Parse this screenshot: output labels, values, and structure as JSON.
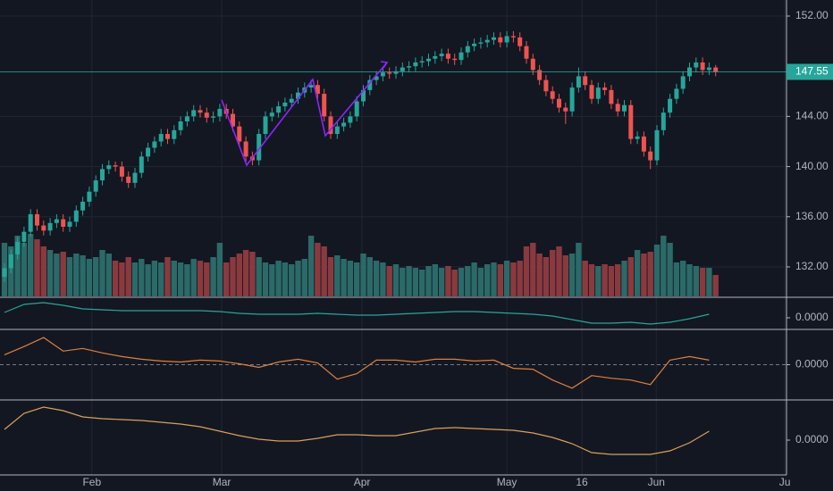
{
  "chart_data": {
    "type": "candlestick",
    "colors": {
      "up": "#26a69a",
      "down": "#ef5350",
      "volume_up": "#2b6a68",
      "volume_down": "#8a3a3f",
      "last_price": "#26a69a"
    },
    "open": [
      131.2,
      131.9,
      133.0,
      134.0,
      134.8,
      136.2,
      135.3,
      134.9,
      135.5,
      135.8,
      135.2,
      135.6,
      136.5,
      137.2,
      138.0,
      138.9,
      139.8,
      140.1,
      140.0,
      139.2,
      138.7,
      139.5,
      140.8,
      141.5,
      142.0,
      142.6,
      142.2,
      142.9,
      143.6,
      144.0,
      144.5,
      144.3,
      143.9,
      144.0,
      144.6,
      144.2,
      143.2,
      142.0,
      140.8,
      140.5,
      142.6,
      144.0,
      144.3,
      144.8,
      145.1,
      145.4,
      145.9,
      146.3,
      146.5,
      145.8,
      144.0,
      142.6,
      143.2,
      143.5,
      144.0,
      145.2,
      146.1,
      146.9,
      147.2,
      147.5,
      147.4,
      147.6,
      147.9,
      148.0,
      148.3,
      148.4,
      148.6,
      148.8,
      149.0,
      148.6,
      148.5,
      149.1,
      149.6,
      149.8,
      149.9,
      150.1,
      150.3,
      149.9,
      150.4,
      150.3,
      149.6,
      148.6,
      147.7,
      146.9,
      146.0,
      145.4,
      144.7,
      144.4,
      146.3,
      147.2,
      146.5,
      145.4,
      146.3,
      146.1,
      145.0,
      144.4,
      144.9,
      142.2,
      142.4,
      141.2,
      140.5,
      142.9,
      144.3,
      145.4,
      146.2,
      147.2,
      147.9,
      148.3,
      147.7,
      147.9
    ],
    "high": [
      132.3,
      133.4,
      134.4,
      135.2,
      136.6,
      136.6,
      135.7,
      135.9,
      136.2,
      136.2,
      136.0,
      136.9,
      137.6,
      138.4,
      139.3,
      140.2,
      140.5,
      140.4,
      140.4,
      139.6,
      139.9,
      141.2,
      141.9,
      142.4,
      143.0,
      143.0,
      143.3,
      144.0,
      144.4,
      144.9,
      144.9,
      144.7,
      144.4,
      145.0,
      145.0,
      144.6,
      143.6,
      142.4,
      141.2,
      143.0,
      144.4,
      144.7,
      145.2,
      145.5,
      145.8,
      146.3,
      146.7,
      146.9,
      146.9,
      146.2,
      144.4,
      143.6,
      143.9,
      144.4,
      145.6,
      146.5,
      147.3,
      147.6,
      147.9,
      147.9,
      148.0,
      148.3,
      148.4,
      148.7,
      148.8,
      149.0,
      149.2,
      149.4,
      149.4,
      149.0,
      149.5,
      150.0,
      150.2,
      150.3,
      150.5,
      150.7,
      150.7,
      150.8,
      150.8,
      150.7,
      150.0,
      149.0,
      148.1,
      147.3,
      146.4,
      145.8,
      145.1,
      146.7,
      147.9,
      147.6,
      146.9,
      146.7,
      146.7,
      146.5,
      145.4,
      145.3,
      145.3,
      142.8,
      142.8,
      141.6,
      143.3,
      144.7,
      145.8,
      146.6,
      147.6,
      148.3,
      148.7,
      148.7,
      148.3,
      148.1
    ],
    "low": [
      130.8,
      131.5,
      132.6,
      133.6,
      134.4,
      134.9,
      134.5,
      134.5,
      135.1,
      134.8,
      134.8,
      135.2,
      136.1,
      136.8,
      137.6,
      138.5,
      139.4,
      139.6,
      138.8,
      138.3,
      138.3,
      139.1,
      140.4,
      141.1,
      141.6,
      141.8,
      141.8,
      142.5,
      143.2,
      143.6,
      143.9,
      143.5,
      143.5,
      143.6,
      143.8,
      142.8,
      141.6,
      140.4,
      140.1,
      140.1,
      142.2,
      143.6,
      143.9,
      144.4,
      144.7,
      145.0,
      145.5,
      145.9,
      145.4,
      143.6,
      142.2,
      142.2,
      142.8,
      143.1,
      143.6,
      144.8,
      145.7,
      146.5,
      146.8,
      147.0,
      147.0,
      147.2,
      147.5,
      147.6,
      147.9,
      148.0,
      148.2,
      148.4,
      148.2,
      148.1,
      148.1,
      148.7,
      149.2,
      149.4,
      149.5,
      149.7,
      149.5,
      149.5,
      149.9,
      149.2,
      148.2,
      147.3,
      146.5,
      145.6,
      145.0,
      144.3,
      143.4,
      144.0,
      145.9,
      146.1,
      145.0,
      145.0,
      145.7,
      144.6,
      144.0,
      144.0,
      141.8,
      141.8,
      140.8,
      139.8,
      140.1,
      142.5,
      143.9,
      145.0,
      145.8,
      146.8,
      147.5,
      147.3,
      147.3,
      147.2
    ],
    "close": [
      131.9,
      133.0,
      134.0,
      134.8,
      136.2,
      135.3,
      134.9,
      135.5,
      135.8,
      135.2,
      135.6,
      136.5,
      137.2,
      138.0,
      138.9,
      139.8,
      140.1,
      140.0,
      139.2,
      138.7,
      139.5,
      140.8,
      141.5,
      142.0,
      142.6,
      142.2,
      142.9,
      143.6,
      144.0,
      144.5,
      144.3,
      143.9,
      144.0,
      144.6,
      144.2,
      143.2,
      142.0,
      140.8,
      140.5,
      142.6,
      144.0,
      144.3,
      144.8,
      145.1,
      145.4,
      145.9,
      146.3,
      146.5,
      145.8,
      144.0,
      142.6,
      143.2,
      143.5,
      144.0,
      145.2,
      146.1,
      146.9,
      147.2,
      147.5,
      147.4,
      147.6,
      147.9,
      148.0,
      148.3,
      148.4,
      148.6,
      148.8,
      149.0,
      148.6,
      148.5,
      149.1,
      149.6,
      149.8,
      149.9,
      150.1,
      150.3,
      149.9,
      150.4,
      150.3,
      149.6,
      148.6,
      147.7,
      146.9,
      146.0,
      145.4,
      144.7,
      144.4,
      146.3,
      147.2,
      146.5,
      145.4,
      146.3,
      146.1,
      145.0,
      144.4,
      144.9,
      142.2,
      142.4,
      141.2,
      140.5,
      142.9,
      144.3,
      145.4,
      146.2,
      147.2,
      147.9,
      148.3,
      147.7,
      147.9,
      147.55
    ],
    "volume": [
      150,
      140,
      170,
      150,
      175,
      160,
      140,
      130,
      120,
      125,
      110,
      120,
      115,
      105,
      110,
      130,
      120,
      100,
      95,
      110,
      95,
      105,
      90,
      100,
      95,
      110,
      100,
      95,
      90,
      105,
      100,
      95,
      110,
      150,
      95,
      110,
      120,
      130,
      125,
      110,
      95,
      90,
      100,
      95,
      90,
      100,
      105,
      170,
      150,
      140,
      110,
      115,
      105,
      100,
      95,
      120,
      110,
      100,
      95,
      85,
      90,
      80,
      85,
      80,
      75,
      85,
      90,
      80,
      85,
      75,
      80,
      85,
      95,
      80,
      90,
      95,
      90,
      100,
      95,
      100,
      140,
      150,
      120,
      110,
      130,
      140,
      115,
      120,
      150,
      100,
      90,
      85,
      90,
      85,
      90,
      100,
      110,
      130,
      120,
      125,
      145,
      170,
      150,
      95,
      100,
      90,
      85,
      80,
      80,
      60
    ],
    "ylim": [
      129.65,
      153.28
    ],
    "yticks": [
      {
        "value": 132,
        "label": "132.00"
      },
      {
        "value": 136,
        "label": "136.00"
      },
      {
        "value": 140,
        "label": "140.00"
      },
      {
        "value": 144,
        "label": "144.00"
      },
      {
        "value": 152,
        "label": "152.00"
      }
    ],
    "last_price": 147.55,
    "xticks": [
      {
        "value": 13.4,
        "label": "Feb"
      },
      {
        "value": 33.3,
        "label": "Mar"
      },
      {
        "value": 54.8,
        "label": "Apr"
      },
      {
        "value": 77,
        "label": "May"
      },
      {
        "value": 88.5,
        "label": "16"
      },
      {
        "value": 99.9,
        "label": "Jun"
      },
      {
        "value": 119.6,
        "label": "Ju"
      }
    ],
    "panes": [
      {
        "type": "line",
        "color": "#26a69a",
        "x": [
          0,
          3,
          6,
          9,
          12,
          15,
          18,
          21,
          24,
          27,
          30,
          33,
          36,
          39,
          42,
          45,
          48,
          51,
          54,
          57,
          60,
          63,
          66,
          69,
          72,
          75,
          78,
          81,
          84,
          87,
          90,
          93,
          96,
          99,
          102,
          105,
          108
        ],
        "values": [
          0.6,
          1.5,
          1.7,
          1.4,
          1.0,
          0.9,
          0.8,
          0.8,
          0.8,
          0.8,
          0.8,
          0.7,
          0.5,
          0.4,
          0.4,
          0.4,
          0.5,
          0.4,
          0.3,
          0.3,
          0.4,
          0.5,
          0.6,
          0.7,
          0.7,
          0.6,
          0.5,
          0.4,
          0.2,
          -0.2,
          -0.6,
          -0.6,
          -0.5,
          -0.7,
          -0.5,
          -0.1,
          0.4
        ],
        "ylim": [
          -1.2,
          2.2
        ],
        "yticks": [
          {
            "value": 0,
            "label": "0.0000"
          }
        ]
      },
      {
        "type": "line",
        "color": "#e0803a",
        "zero_line": true,
        "x": [
          0,
          3,
          6,
          9,
          12,
          15,
          18,
          21,
          24,
          27,
          30,
          33,
          36,
          39,
          42,
          45,
          48,
          51,
          54,
          57,
          60,
          63,
          66,
          69,
          72,
          75,
          78,
          81,
          84,
          87,
          90,
          93,
          96,
          99,
          102,
          105,
          108
        ],
        "values": [
          1.1,
          2.0,
          3.0,
          1.5,
          1.8,
          1.3,
          0.9,
          0.6,
          0.4,
          0.3,
          0.5,
          0.4,
          0.1,
          -0.3,
          0.3,
          0.6,
          0.2,
          -1.6,
          -1.0,
          0.5,
          0.5,
          0.3,
          0.6,
          0.6,
          0.4,
          0.5,
          -0.4,
          -0.5,
          -1.7,
          -2.6,
          -1.2,
          -1.5,
          -1.7,
          -2.2,
          0.5,
          0.9,
          0.5
        ],
        "ylim": [
          -3.8,
          3.8
        ],
        "yticks": [
          {
            "value": 0,
            "label": "0.0000"
          }
        ]
      },
      {
        "type": "line",
        "color": "#d9a05b",
        "x": [
          0,
          3,
          6,
          9,
          12,
          15,
          18,
          21,
          24,
          27,
          30,
          33,
          36,
          39,
          42,
          45,
          48,
          51,
          54,
          57,
          60,
          63,
          66,
          69,
          72,
          75,
          78,
          81,
          84,
          87,
          90,
          93,
          96,
          99,
          102,
          105,
          108
        ],
        "values": [
          1.2,
          3.0,
          3.7,
          3.3,
          2.6,
          2.4,
          2.3,
          2.2,
          2.0,
          1.8,
          1.5,
          1.0,
          0.5,
          0.1,
          -0.1,
          -0.1,
          0.2,
          0.6,
          0.6,
          0.5,
          0.5,
          0.9,
          1.3,
          1.4,
          1.3,
          1.2,
          1.1,
          0.8,
          0.3,
          -0.4,
          -1.4,
          -1.6,
          -1.6,
          -1.6,
          -1.2,
          -0.3,
          1.0
        ],
        "ylim": [
          -3.8,
          4.4
        ],
        "yticks": [
          {
            "value": 0,
            "label": "0.0000"
          }
        ]
      }
    ]
  }
}
